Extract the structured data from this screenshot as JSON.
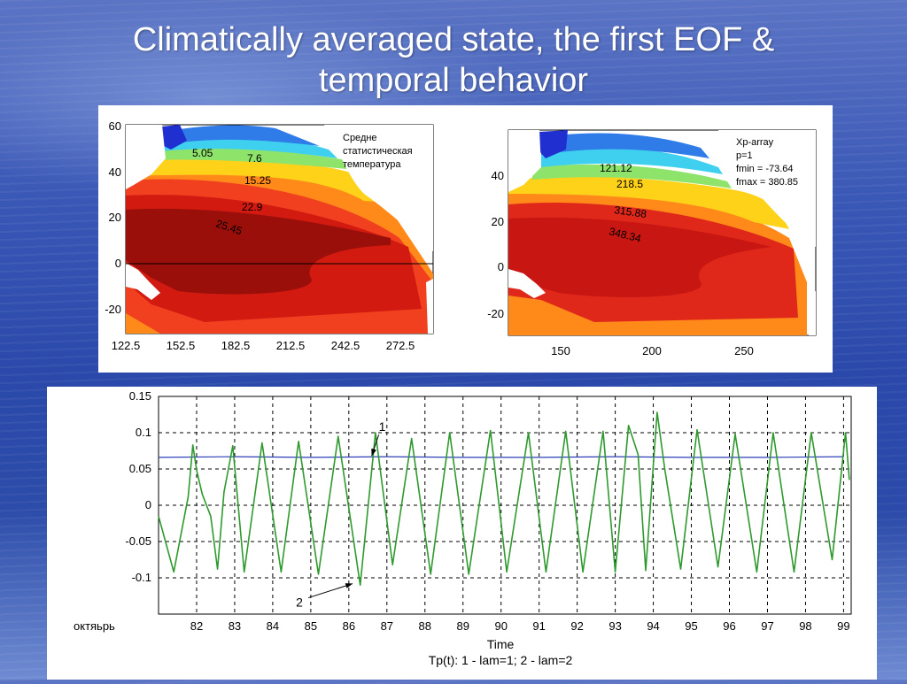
{
  "slide": {
    "title_line1": "Climatically averaged state, the first EOF &",
    "title_line2": "temporal behavior"
  },
  "map_left": {
    "y_ticks": [
      "60",
      "40",
      "20",
      "0",
      "-20"
    ],
    "x_ticks": [
      "122.5",
      "152.5",
      "182.5",
      "212.5",
      "242.5",
      "272.5"
    ],
    "annotation": [
      "Средне",
      "статистическая",
      "температура"
    ],
    "contour_labels": [
      "5.05",
      "7.6",
      "15.25",
      "22.9",
      "25.45"
    ]
  },
  "map_right": {
    "y_ticks": [
      "40",
      "20",
      "0",
      "-20"
    ],
    "x_ticks": [
      "150",
      "200",
      "250"
    ],
    "annotation": [
      "Xp-array",
      "p=1",
      "fmin = -73.64",
      "fmax = 380.85"
    ],
    "contour_labels": [
      "121.12",
      "218.5",
      "315.88",
      "348.34"
    ]
  },
  "chart_data": {
    "type": "line",
    "xlabel": "Time",
    "caption": "Tp(t):   1 - lam=1;  2 - lam=2",
    "x_first_label": "октяьрь",
    "x_tick_labels": [
      "82",
      "83",
      "84",
      "85",
      "86",
      "87",
      "88",
      "89",
      "90",
      "91",
      "92",
      "93",
      "94",
      "95",
      "96",
      "97",
      "98",
      "99"
    ],
    "y_tick_labels": [
      "0.15",
      "0.1",
      "0.05",
      "0",
      "-0.05",
      "-0.1"
    ],
    "ylim": [
      -0.15,
      0.15
    ],
    "xlim": [
      81,
      99.2
    ],
    "grid": true,
    "series": [
      {
        "label": "1",
        "color": "#2b3fb8",
        "x": [
          81.0,
          83.0,
          85.0,
          87.0,
          89.0,
          91.0,
          93.0,
          95.0,
          97.0,
          99.0
        ],
        "y": [
          0.066,
          0.067,
          0.066,
          0.067,
          0.066,
          0.066,
          0.067,
          0.066,
          0.066,
          0.067
        ]
      },
      {
        "label": "2",
        "color": "#2e9a2e",
        "x": [
          81.0,
          81.4,
          81.78,
          81.9,
          82.0,
          82.15,
          82.37,
          82.55,
          82.72,
          82.95,
          83.25,
          83.72,
          84.22,
          84.68,
          85.2,
          85.72,
          86.3,
          86.7,
          87.15,
          87.65,
          88.15,
          88.65,
          89.15,
          89.72,
          90.15,
          90.72,
          91.18,
          91.7,
          92.15,
          92.68,
          93.0,
          93.35,
          93.6,
          93.8,
          94.1,
          94.3,
          94.72,
          95.15,
          95.7,
          96.15,
          96.72,
          97.15,
          97.7,
          98.15,
          98.7,
          99.05,
          99.15
        ],
        "y": [
          -0.015,
          -0.092,
          0.012,
          0.083,
          0.048,
          0.015,
          -0.015,
          -0.088,
          0.018,
          0.082,
          -0.092,
          0.086,
          -0.092,
          0.088,
          -0.095,
          0.095,
          -0.11,
          0.1,
          -0.082,
          0.092,
          -0.095,
          0.1,
          -0.095,
          0.103,
          -0.092,
          0.1,
          -0.092,
          0.102,
          -0.092,
          0.102,
          -0.092,
          0.11,
          0.07,
          -0.09,
          0.128,
          0.05,
          -0.088,
          0.104,
          -0.085,
          0.098,
          -0.092,
          0.1,
          -0.092,
          0.1,
          -0.075,
          0.1,
          0.035
        ]
      }
    ],
    "annotations": [
      {
        "text": "1",
        "target_x": 86.6,
        "target_y": 0.068
      },
      {
        "text": "2",
        "target_x": 86.1,
        "target_y": -0.108
      }
    ]
  }
}
